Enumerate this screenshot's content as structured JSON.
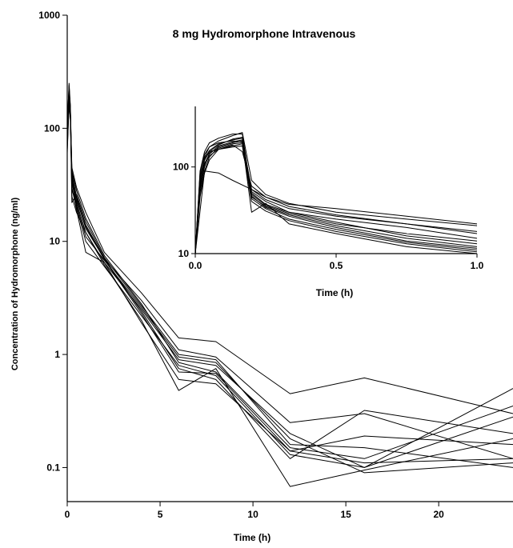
{
  "chart_data": [
    {
      "type": "line",
      "title": "8 mg Hydromorphone Intravenous",
      "xlabel": "Time  (h)",
      "ylabel": "Concentration of Hydromorphone  (ng/ml)",
      "yscale": "log",
      "xlim": [
        0,
        24
      ],
      "ylim": [
        0.05,
        1000
      ],
      "xticks": [
        "0",
        "5",
        "10",
        "15",
        "20"
      ],
      "yticks": [
        "0.1",
        "1",
        "10",
        "100",
        "1000"
      ],
      "grid": false,
      "line_color": "#000000",
      "series": [
        {
          "x": [
            0,
            0.1,
            0.17,
            0.25,
            0.5,
            1,
            2,
            4,
            6,
            8,
            12,
            16,
            24
          ],
          "y": [
            80,
            230,
            140,
            45,
            30,
            18,
            8,
            3.5,
            1.4,
            1.3,
            0.45,
            0.62,
            0.3
          ]
        },
        {
          "x": [
            0,
            0.1,
            0.17,
            0.25,
            0.5,
            1,
            2,
            4,
            6,
            8,
            12,
            16,
            24
          ],
          "y": [
            90,
            200,
            150,
            40,
            25,
            14,
            7,
            3,
            1.1,
            0.95,
            0.25,
            0.3,
            0.12
          ]
        },
        {
          "x": [
            0,
            0.1,
            0.17,
            0.25,
            0.5,
            1,
            2,
            4,
            6,
            8,
            12,
            16,
            24
          ],
          "y": [
            70,
            180,
            130,
            38,
            22,
            12,
            6.5,
            2.5,
            0.9,
            0.8,
            0.2,
            0.1,
            0.5
          ]
        },
        {
          "x": [
            0,
            0.1,
            0.17,
            0.25,
            0.5,
            1,
            2,
            4,
            6,
            8,
            12,
            16,
            24
          ],
          "y": [
            100,
            250,
            160,
            42,
            28,
            16,
            7.5,
            2.8,
            0.85,
            0.7,
            0.15,
            0.12,
            0.35
          ]
        },
        {
          "x": [
            0,
            0.1,
            0.17,
            0.25,
            0.5,
            1,
            2,
            4,
            6,
            8,
            12,
            16,
            24
          ],
          "y": [
            60,
            170,
            120,
            35,
            20,
            10,
            6,
            2.2,
            0.8,
            0.65,
            0.13,
            0.1,
            0.28
          ]
        },
        {
          "x": [
            0,
            0.1,
            0.17,
            0.25,
            0.5,
            1,
            2,
            4,
            6,
            8,
            12,
            16,
            24
          ],
          "y": [
            85,
            210,
            145,
            36,
            24,
            13,
            7,
            2.4,
            0.75,
            0.6,
            0.12,
            0.32,
            0.2
          ]
        },
        {
          "x": [
            0,
            0.1,
            0.17,
            0.25,
            0.5,
            1,
            2,
            4,
            6,
            8,
            12,
            16,
            24
          ],
          "y": [
            75,
            190,
            135,
            33,
            21,
            11,
            6.8,
            2.6,
            0.95,
            0.85,
            0.18,
            0.09,
            0.11
          ]
        },
        {
          "x": [
            0,
            0.1,
            0.17,
            0.25,
            0.5,
            1,
            2,
            4,
            6,
            8,
            12,
            16,
            24
          ],
          "y": [
            95,
            220,
            155,
            30,
            19,
            8,
            6.5,
            1.9,
            0.6,
            0.55,
            0.14,
            0.19,
            0.16
          ]
        },
        {
          "x": [
            0,
            0.1,
            0.17,
            0.25,
            0.5,
            1,
            2,
            4,
            6,
            8,
            12,
            16,
            24
          ],
          "y": [
            65,
            160,
            125,
            25,
            18,
            12,
            6.2,
            2,
            0.48,
            0.75,
            0.068,
            0.095,
            0.18
          ]
        },
        {
          "x": [
            0,
            0.1,
            0.17,
            0.25,
            0.5,
            1,
            2,
            4,
            6,
            8,
            12,
            16,
            24
          ],
          "y": [
            110,
            240,
            150,
            22,
            26,
            15,
            7.2,
            2.7,
            1,
            0.9,
            0.16,
            0.15,
            0.1
          ]
        },
        {
          "x": [
            0,
            0.1,
            0.17,
            0.25,
            0.5,
            1,
            2,
            4,
            6,
            8,
            12,
            16,
            24
          ],
          "y": [
            80,
            195,
            140,
            28,
            23,
            13.5,
            6.9,
            2.3,
            0.7,
            0.68,
            0.14,
            0.11,
            0.12
          ]
        }
      ]
    },
    {
      "type": "line",
      "title": "",
      "xlabel": "Time  (h)",
      "ylabel": "",
      "yscale": "log",
      "xlim": [
        0,
        1
      ],
      "ylim": [
        10,
        500
      ],
      "xticks": [
        "0.0",
        "0.5",
        "1.0"
      ],
      "yticks": [
        "10",
        "100"
      ],
      "grid": false,
      "line_color": "#000000",
      "series": [
        {
          "x": [
            0,
            0.017,
            0.033,
            0.05,
            0.083,
            0.133,
            0.167,
            0.2,
            0.25,
            0.333,
            0.5,
            0.75,
            1
          ],
          "y": [
            10,
            60,
            120,
            150,
            160,
            180,
            150,
            60,
            45,
            37,
            33,
            27,
            22
          ]
        },
        {
          "x": [
            0,
            0.017,
            0.033,
            0.05,
            0.083,
            0.133,
            0.167,
            0.2,
            0.25,
            0.333,
            0.5,
            0.75,
            1
          ],
          "y": [
            10,
            70,
            130,
            170,
            200,
            230,
            250,
            70,
            48,
            38,
            30,
            25,
            21
          ]
        },
        {
          "x": [
            0,
            0.017,
            0.033,
            0.05,
            0.083,
            0.133,
            0.167,
            0.2,
            0.25,
            0.333,
            0.5,
            0.75,
            1
          ],
          "y": [
            10,
            50,
            90,
            130,
            170,
            190,
            200,
            55,
            42,
            33,
            27,
            22,
            17
          ]
        },
        {
          "x": [
            0,
            0.017,
            0.033,
            0.05,
            0.083,
            0.133,
            0.167,
            0.2,
            0.25,
            0.333,
            0.5,
            0.75,
            1
          ],
          "y": [
            10,
            80,
            120,
            150,
            180,
            210,
            220,
            52,
            40,
            30,
            25,
            20,
            15
          ]
        },
        {
          "x": [
            0,
            0.017,
            0.033,
            0.05,
            0.083,
            0.133,
            0.167,
            0.2,
            0.25,
            0.333,
            0.5,
            0.75,
            1
          ],
          "y": [
            10,
            45,
            85,
            120,
            160,
            175,
            185,
            48,
            36,
            29,
            22,
            17,
            14
          ]
        },
        {
          "x": [
            0,
            0.017,
            0.033,
            0.05,
            0.083,
            0.133,
            0.167,
            0.2,
            0.25,
            0.333,
            0.5,
            0.75,
            1
          ],
          "y": [
            10,
            65,
            110,
            140,
            175,
            195,
            205,
            50,
            37,
            30,
            23,
            16,
            13
          ]
        },
        {
          "x": [
            0,
            0.017,
            0.033,
            0.05,
            0.083,
            0.133,
            0.167,
            0.2,
            0.25,
            0.333,
            0.5,
            0.75,
            1
          ],
          "y": [
            10,
            55,
            100,
            145,
            165,
            185,
            190,
            45,
            35,
            28,
            21,
            15,
            12
          ]
        },
        {
          "x": [
            0,
            0.017,
            0.033,
            0.05,
            0.083,
            0.133,
            0.167,
            0.2,
            0.25,
            0.333,
            0.5,
            0.75,
            1
          ],
          "y": [
            10,
            90,
            150,
            190,
            215,
            240,
            240,
            46,
            34,
            27,
            20,
            14,
            11.5
          ]
        },
        {
          "x": [
            0,
            0.017,
            0.033,
            0.05,
            0.083,
            0.133,
            0.167,
            0.2,
            0.25,
            0.333,
            0.5,
            0.75,
            1
          ],
          "y": [
            10,
            75,
            125,
            155,
            185,
            205,
            215,
            43,
            33,
            25,
            19,
            13.5,
            11
          ]
        },
        {
          "x": [
            0,
            0.017,
            0.033,
            0.05,
            0.083,
            0.133,
            0.167,
            0.2,
            0.25,
            0.333,
            0.5,
            0.75,
            1
          ],
          "y": [
            10,
            60,
            105,
            135,
            160,
            170,
            175,
            40,
            31,
            24,
            18,
            13,
            10.5
          ]
        },
        {
          "x": [
            0,
            0.017,
            0.033,
            0.05,
            0.083,
            0.133,
            0.167,
            0.2,
            0.25,
            0.333,
            0.5,
            0.75,
            1
          ],
          "y": [
            10,
            85,
            140,
            170,
            190,
            200,
            195,
            30,
            38,
            22,
            17,
            12,
            10
          ]
        },
        {
          "x": [
            0,
            0.033,
            0.083,
            0.133,
            0.2,
            0.25,
            0.333,
            0.5,
            0.75,
            1
          ],
          "y": [
            10,
            90,
            85,
            70,
            55,
            45,
            35,
            28,
            22,
            18
          ]
        }
      ]
    }
  ]
}
